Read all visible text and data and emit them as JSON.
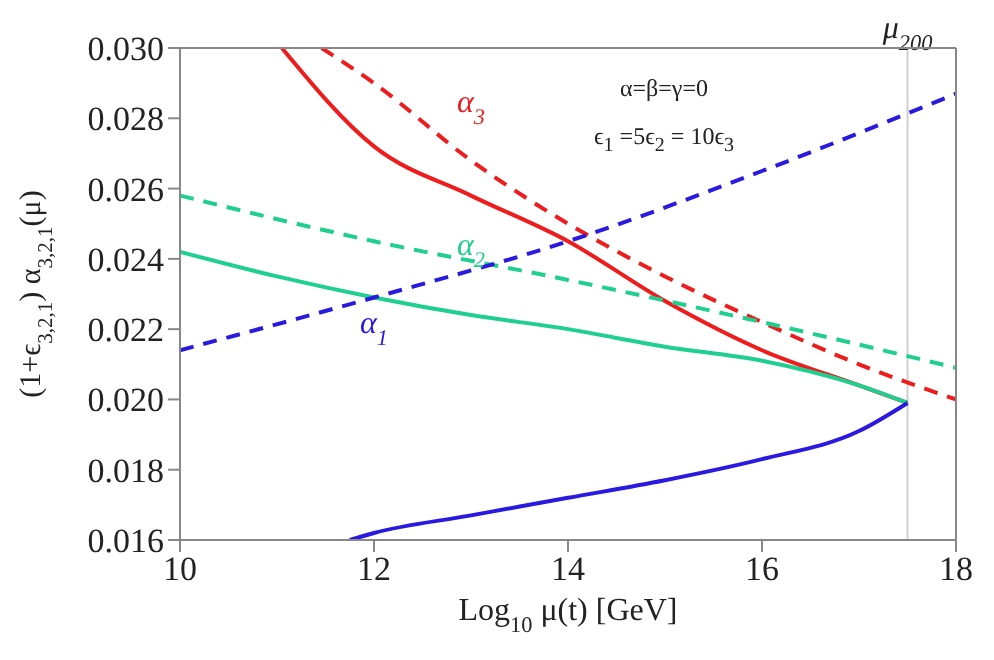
{
  "chart_data": {
    "type": "line",
    "xlabel": "Log$_{10}$ μ(t) [GeV]",
    "ylabel": "(1+ϵ$_{3,2,1}$) α$_{3,2,1}$(μ)",
    "xlim": [
      10,
      18
    ],
    "xticks": [
      10,
      12,
      14,
      16,
      18
    ],
    "ylim": [
      0.016,
      0.03
    ],
    "yticks": [
      {
        "value": 0.016,
        "label": "0.016"
      },
      {
        "value": 0.018,
        "label": "0.018"
      },
      {
        "value": 0.02,
        "label": "0.020"
      },
      {
        "value": 0.022,
        "label": "0.022"
      },
      {
        "value": 0.024,
        "label": "0.024"
      },
      {
        "value": 0.026,
        "label": "0.026"
      },
      {
        "value": 0.028,
        "label": "0.028"
      },
      {
        "value": 0.03,
        "label": "0.030"
      }
    ],
    "marker": "none",
    "annotations": [
      "α=β=γ=0",
      "ϵ$_{1}$ =5ϵ$_{2}$ = 10ϵ$_{3}$"
    ],
    "ref_lines": [
      {
        "axis": "x",
        "value": 17.5,
        "label": "μ$_{200}$",
        "color": "#d0d0d0"
      }
    ],
    "series": [
      {
        "name": "α$_{3}$",
        "color": "#ee1c1c",
        "line_style": "solid",
        "x": [
          11.05,
          12,
          13,
          14,
          15,
          16,
          17,
          17.5
        ],
        "values": [
          0.03,
          0.0272,
          0.0258,
          0.0245,
          0.0228,
          0.0214,
          0.0204,
          0.0199
        ]
      },
      {
        "color": "#ee1c1c",
        "line_style": "dashed",
        "x": [
          11.46,
          12,
          13,
          14,
          15,
          16,
          17,
          18
        ],
        "values": [
          0.03,
          0.029,
          0.0268,
          0.025,
          0.0235,
          0.0222,
          0.021,
          0.02
        ]
      },
      {
        "name": "α$_{2}$",
        "color": "#1fcf8f",
        "line_style": "solid",
        "x": [
          10,
          11,
          12,
          13,
          14,
          15,
          16,
          17,
          17.5
        ],
        "values": [
          0.0242,
          0.0235,
          0.0229,
          0.0224,
          0.022,
          0.0215,
          0.0211,
          0.0204,
          0.0199
        ]
      },
      {
        "color": "#1fcf8f",
        "line_style": "dashed",
        "x": [
          10,
          12,
          14,
          16,
          18
        ],
        "values": [
          0.0258,
          0.0245,
          0.0234,
          0.0222,
          0.0209
        ]
      },
      {
        "name": "α$_{1}$",
        "color": "#2a1ae0",
        "line_style": "solid",
        "x": [
          11.75,
          12,
          13,
          14,
          15,
          16,
          17,
          17.5
        ],
        "values": [
          0.016,
          0.0162,
          0.0167,
          0.0172,
          0.0177,
          0.0183,
          0.0191,
          0.0199
        ]
      },
      {
        "color": "#2a1ae0",
        "line_style": "dashed",
        "x": [
          10,
          12,
          14,
          16,
          18
        ],
        "values": [
          0.0214,
          0.0229,
          0.0245,
          0.0265,
          0.0287
        ]
      }
    ]
  }
}
